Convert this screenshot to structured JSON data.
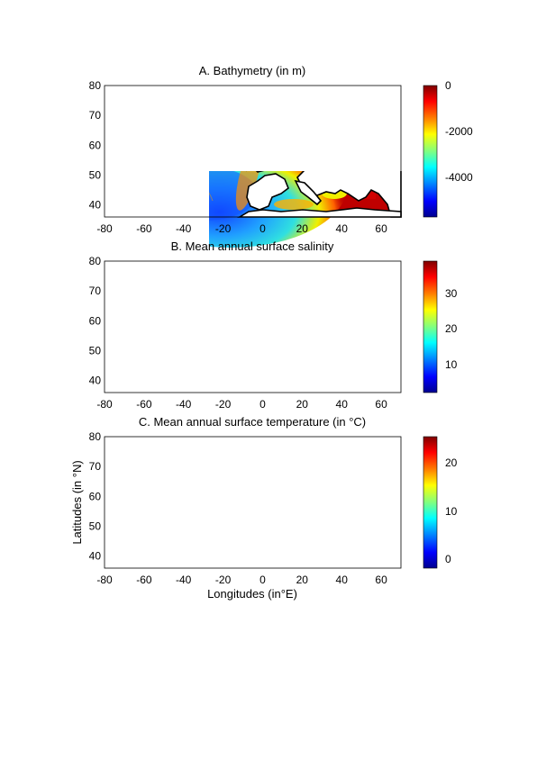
{
  "figure": {
    "ylabel": "Latitudes (in °N)",
    "xlabel": "Longitudes (in°E)",
    "x_ticks": [
      "-80",
      "-60",
      "-40",
      "-20",
      "0",
      "20",
      "40",
      "60"
    ],
    "y_ticks": [
      "80",
      "70",
      "60",
      "50",
      "40"
    ]
  },
  "panels": [
    {
      "id": "bathymetry",
      "title": "A. Bathymetry (in m)",
      "colorbar": {
        "ticks": [
          "0",
          "-2000",
          "-4000"
        ],
        "colors": [
          "#7f0000",
          "#ff0000",
          "#ff8000",
          "#ffff00",
          "#80ff80",
          "#00ffff",
          "#0080ff",
          "#0000ff",
          "#00008f"
        ]
      }
    },
    {
      "id": "salinity",
      "title": "B. Mean annual surface salinity",
      "colorbar": {
        "ticks": [
          "30",
          "20",
          "10"
        ],
        "colors": [
          "#7f0000",
          "#ff0000",
          "#ff8000",
          "#ffff00",
          "#80ff80",
          "#00ffff",
          "#0080ff",
          "#0000ff",
          "#00008f"
        ]
      }
    },
    {
      "id": "temperature",
      "title": "C. Mean annual surface temperature (in °C)",
      "colorbar": {
        "ticks": [
          "20",
          "10",
          "0"
        ],
        "colors": [
          "#7f0000",
          "#ff0000",
          "#ff8000",
          "#ffff00",
          "#80ff80",
          "#00ffff",
          "#0080ff",
          "#0000ff",
          "#00008f"
        ]
      }
    }
  ],
  "colors": {
    "land": "#ffffff",
    "coast": "#000000",
    "contour": "#808080"
  }
}
